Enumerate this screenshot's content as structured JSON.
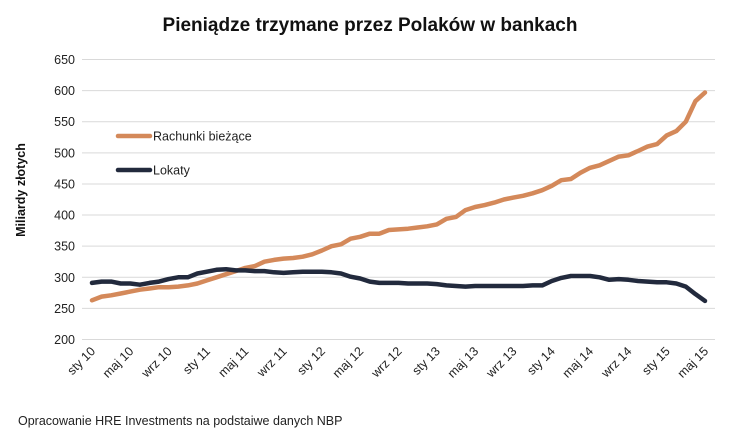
{
  "chart_data": {
    "type": "line",
    "title": "Pieniądze trzymane przez Polaków w bankach",
    "xlabel": "",
    "ylabel": "Miliardy złotych",
    "ylim": [
      200,
      650
    ],
    "yticks": [
      200,
      250,
      300,
      350,
      400,
      450,
      500,
      550,
      600,
      650
    ],
    "grid": true,
    "legend_position": "top-left",
    "xtick_labels": [
      "sty 10",
      "maj 10",
      "wrz 10",
      "sty 11",
      "maj 11",
      "wrz 11",
      "sty 12",
      "maj 12",
      "wrz 12",
      "sty 13",
      "maj 13",
      "wrz 13",
      "sty 14",
      "maj 14",
      "wrz 14",
      "sty 15",
      "maj 15"
    ],
    "x_note": "monthly, Jan 2010 – May 2015",
    "series": [
      {
        "name": "Rachunki bieżące",
        "color": "#D4895A",
        "values": [
          263,
          269,
          271,
          274,
          277,
          280,
          282,
          284,
          284,
          285,
          287,
          290,
          295,
          300,
          305,
          310,
          315,
          318,
          325,
          328,
          330,
          331,
          333,
          337,
          343,
          350,
          353,
          362,
          365,
          370,
          370,
          376,
          377,
          378,
          380,
          382,
          385,
          394,
          397,
          408,
          413,
          416,
          420,
          425,
          428,
          431,
          435,
          440,
          447,
          456,
          458,
          468,
          476,
          480,
          487,
          494,
          496,
          503,
          510,
          514,
          528,
          535,
          550,
          583,
          597
        ]
      },
      {
        "name": "Lokaty",
        "color": "#222A3D",
        "values": [
          291,
          293,
          293,
          290,
          290,
          288,
          291,
          293,
          297,
          300,
          300,
          306,
          309,
          312,
          313,
          311,
          311,
          310,
          310,
          308,
          307,
          308,
          309,
          309,
          309,
          308,
          306,
          301,
          298,
          293,
          291,
          291,
          291,
          290,
          290,
          290,
          289,
          287,
          286,
          285,
          286,
          286,
          286,
          286,
          286,
          286,
          287,
          287,
          294,
          299,
          302,
          302,
          302,
          300,
          296,
          297,
          296,
          294,
          293,
          292,
          292,
          290,
          285,
          273,
          262
        ]
      }
    ]
  },
  "footnote": "Opracowanie HRE Investments na podstaiwe danych NBP"
}
